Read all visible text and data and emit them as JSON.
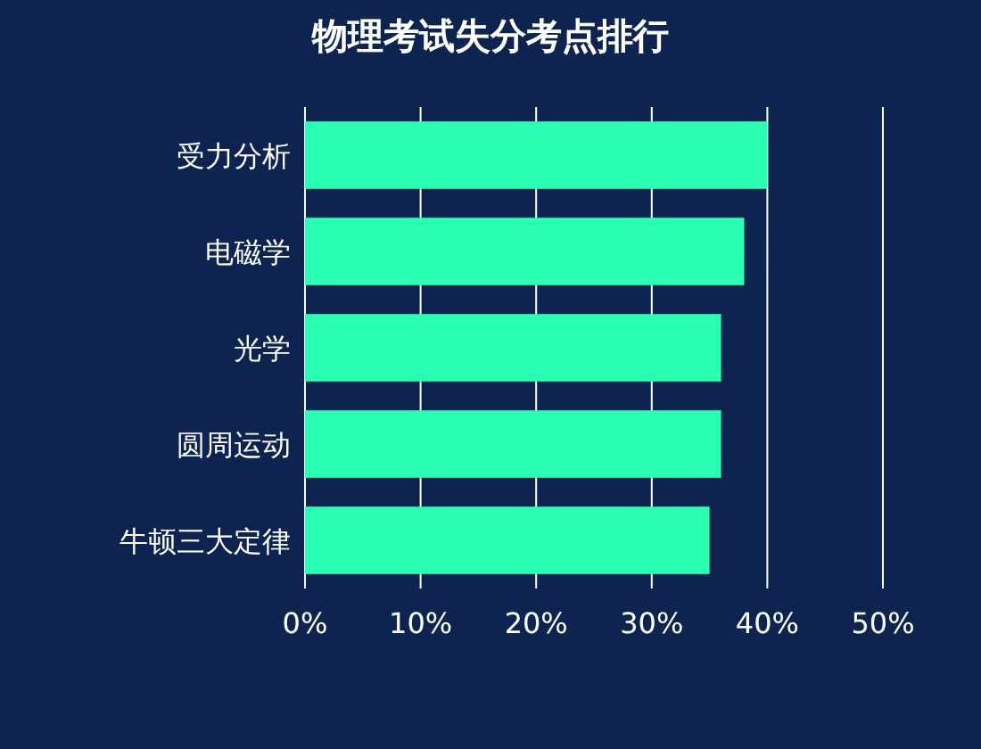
{
  "chart_data": {
    "type": "bar",
    "orientation": "horizontal",
    "title": "物理考试失分考点排行",
    "categories": [
      "受力分析",
      "电磁学",
      "光学",
      "圆周运动",
      "牛顿三大定律"
    ],
    "values": [
      40,
      38,
      36,
      36,
      35
    ],
    "color": "#2affb4",
    "xlim": [
      0,
      50
    ],
    "xticks": [
      {
        "value": 0,
        "label": "0%"
      },
      {
        "value": 10,
        "label": "10%"
      },
      {
        "value": 20,
        "label": "20%"
      },
      {
        "value": 30,
        "label": "30%"
      },
      {
        "value": 40,
        "label": "40%"
      },
      {
        "value": 50,
        "label": "50%"
      }
    ],
    "grid": "x"
  }
}
